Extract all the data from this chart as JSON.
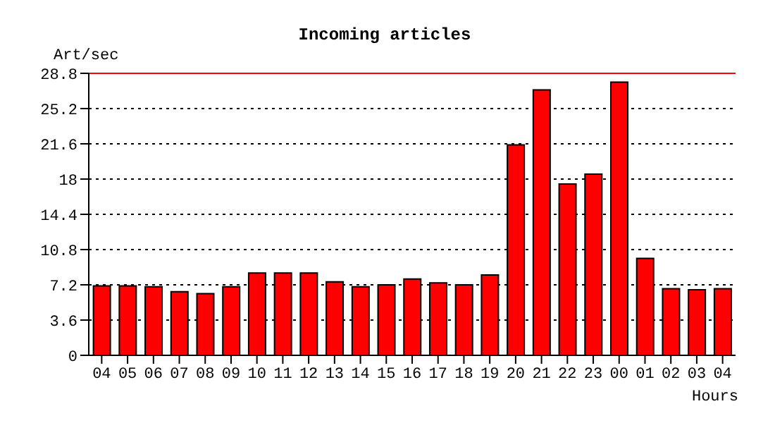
{
  "chart_data": {
    "type": "bar",
    "title": "Incoming articles",
    "ylabel": "Art/sec",
    "xlabel": "Hours",
    "categories": [
      "04",
      "05",
      "06",
      "07",
      "08",
      "09",
      "10",
      "11",
      "12",
      "13",
      "14",
      "15",
      "16",
      "17",
      "18",
      "19",
      "20",
      "21",
      "22",
      "23",
      "00",
      "01",
      "02",
      "03",
      "04"
    ],
    "values": [
      7.1,
      7.1,
      7.0,
      6.5,
      6.3,
      7.0,
      8.4,
      8.4,
      8.4,
      7.5,
      7.0,
      7.2,
      7.8,
      7.4,
      7.2,
      8.2,
      21.5,
      27.1,
      17.5,
      18.5,
      27.9,
      9.9,
      6.8,
      6.7,
      6.8
    ],
    "color": "#ff0000",
    "ylim": [
      0,
      28.8
    ],
    "yticks": [
      0,
      3.6,
      7.2,
      10.8,
      14.4,
      18,
      21.6,
      25.2,
      28.8
    ],
    "grid": "y",
    "legend": false,
    "ref_lines": [
      {
        "axis": "y",
        "value": 28.8,
        "color": "#ff0000",
        "line_style": "solid"
      }
    ]
  }
}
